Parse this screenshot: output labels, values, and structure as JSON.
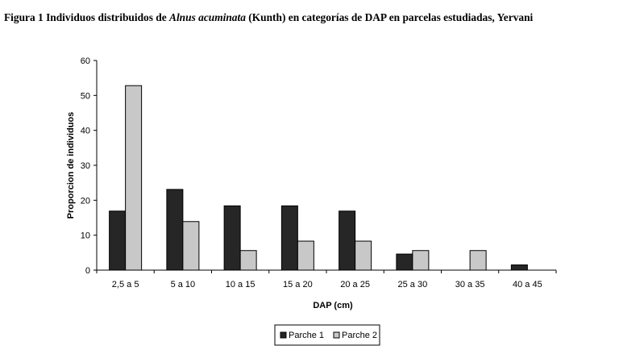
{
  "caption": {
    "prefix": "Figura 1 Individuos distribuidos de ",
    "species": "Alnus acuminata",
    "suffix": " (Kunth) en categorías de DAP en  parcelas estudiadas, Yervani"
  },
  "chart_data": {
    "type": "bar",
    "title": "",
    "xlabel": "DAP (cm)",
    "ylabel": "Proporcion de individuos",
    "ylim": [
      0,
      60
    ],
    "yticks": [
      0,
      10,
      20,
      30,
      40,
      50,
      60
    ],
    "categories": [
      "2,5 a 5",
      "5 a 10",
      "10 a 15",
      "15  a 20",
      "20 a 25",
      "25 a 30",
      "30 a 35",
      "40 a 45"
    ],
    "series": [
      {
        "name": "Parche 1",
        "color": "#262626",
        "values": [
          16.9,
          23.1,
          18.4,
          18.4,
          16.9,
          4.6,
          0,
          1.5
        ]
      },
      {
        "name": "Parche 2",
        "color": "#c8c8c8",
        "values": [
          52.8,
          13.9,
          5.6,
          8.3,
          8.3,
          5.6,
          5.6,
          0
        ]
      }
    ],
    "grid": false,
    "legend_position": "bottom-center"
  }
}
